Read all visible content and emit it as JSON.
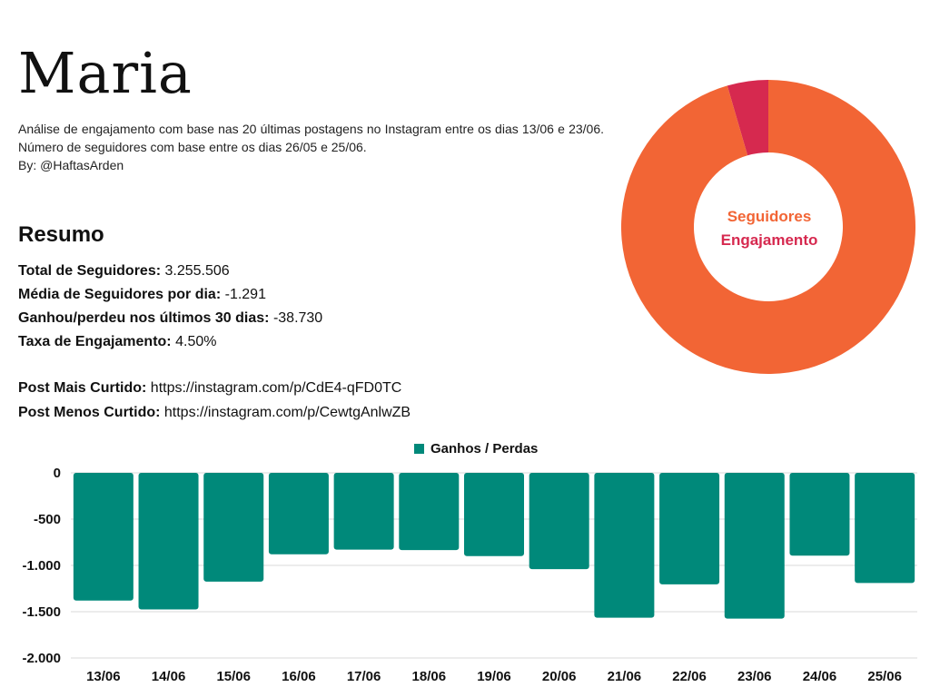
{
  "profile": {
    "name": "Maria",
    "description_line1": "Análise de engajamento com base nas 20 últimas postagens no Instagram entre os dias 13/06 e 23/06. Número de seguidores com base entre os dias 26/05 e 25/06.",
    "byline": "By: @HaftasArden"
  },
  "summary": {
    "title": "Resumo",
    "stats": [
      {
        "label": "Total de Seguidores:",
        "value": "3.255.506"
      },
      {
        "label": "Média de Seguidores por dia:",
        "value": "-1.291"
      },
      {
        "label": "Ganhou/perdeu nos últimos 30 dias:",
        "value": "-38.730"
      },
      {
        "label": "Taxa de Engajamento:",
        "value": "4.50%"
      }
    ],
    "posts": [
      {
        "label": "Post Mais Curtido:",
        "value": "https://instagram.com/p/CdE4-qFD0TC"
      },
      {
        "label": "Post Menos Curtido:",
        "value": "https://instagram.com/p/CewtgAnlwZB"
      }
    ]
  },
  "colors": {
    "followers": "#f26535",
    "engagement": "#d6294f",
    "bars": "#00897a",
    "grid": "#d9d9d9"
  },
  "chart_data": [
    {
      "type": "pie",
      "donut": true,
      "labels": [
        "Seguidores",
        "Engajamento"
      ],
      "values": [
        95.5,
        4.5
      ]
    },
    {
      "type": "bar",
      "categories": [
        "13/06",
        "14/06",
        "15/06",
        "16/06",
        "17/06",
        "18/06",
        "19/06",
        "20/06",
        "21/06",
        "22/06",
        "23/06",
        "24/06",
        "25/06"
      ],
      "series": [
        {
          "name": "Ganhos / Perdas",
          "values": [
            -1380,
            -1475,
            -1175,
            -880,
            -830,
            -835,
            -900,
            -1040,
            -1565,
            -1205,
            -1575,
            -895,
            -1190
          ]
        }
      ],
      "ylim": [
        -2000,
        0
      ],
      "yticks": [
        0,
        -500,
        -1000,
        -1500,
        -2000
      ],
      "ytick_labels": [
        "0",
        "-500",
        "-1.000",
        "-1.500",
        "-2.000"
      ],
      "legend": "top-center",
      "grid": true
    }
  ]
}
